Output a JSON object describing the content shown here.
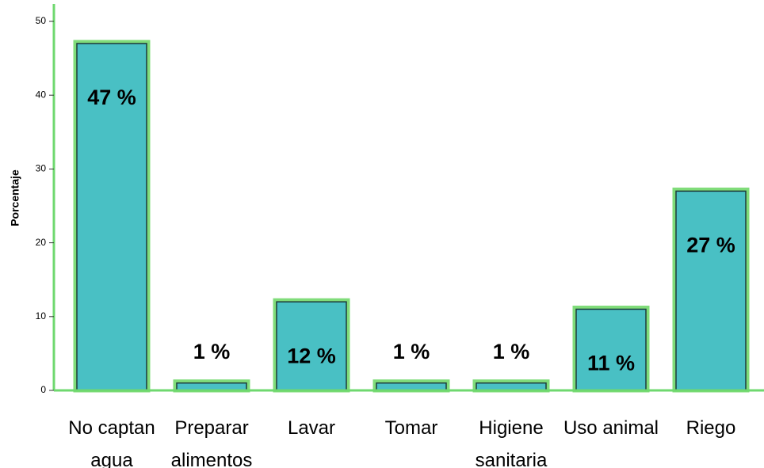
{
  "chart_data": {
    "type": "bar",
    "y_label": "Porcentaje",
    "categories": [
      "No captan agua",
      "Preparar alimentos",
      "Lavar",
      "Tomar",
      "Higiene sanitaria",
      "Uso animal",
      "Riego"
    ],
    "values": [
      47,
      1,
      12,
      1,
      1,
      11,
      27
    ],
    "value_labels": [
      "47 %",
      "1 %",
      "12 %",
      "1 %",
      "1 %",
      "11 %",
      "27 %"
    ],
    "color": "#49c0c4",
    "ylim": [
      0,
      50
    ],
    "yticks": [
      0,
      10,
      20,
      30,
      40,
      50
    ],
    "grid": false
  }
}
